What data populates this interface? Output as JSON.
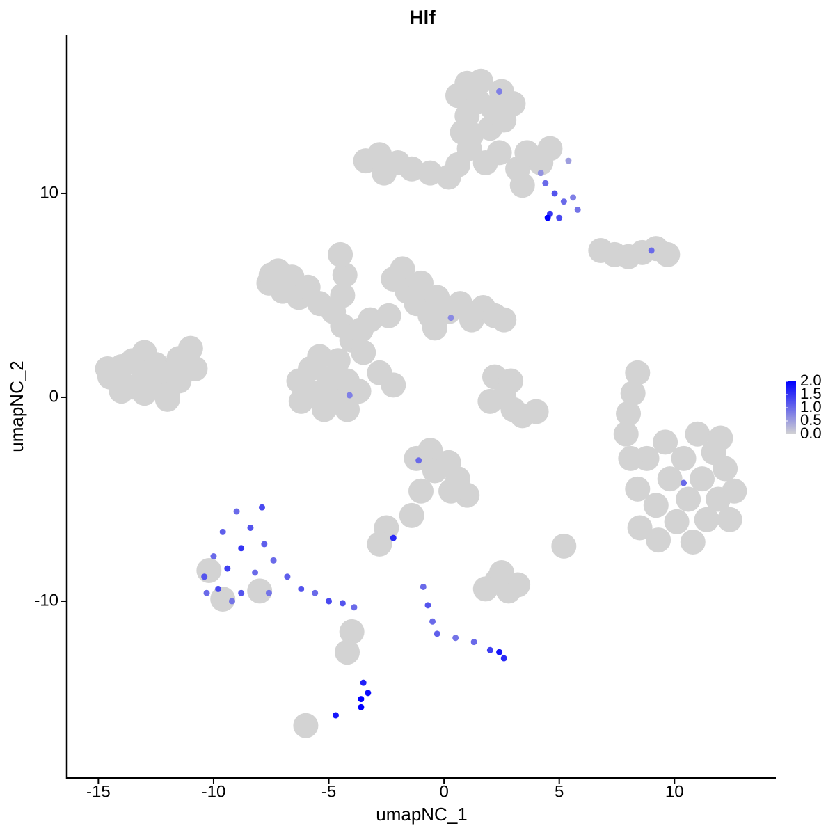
{
  "chart_data": {
    "type": "scatter",
    "title": "Hlf",
    "x_label": "umapNC_1",
    "y_label": "umapNC_2",
    "xlim": [
      -16.37,
      14.4
    ],
    "ylim": [
      -18.67,
      17.78
    ],
    "xticks": [
      -15,
      -10,
      -5,
      0,
      5,
      10
    ],
    "yticks": [
      -10,
      0,
      10
    ],
    "color_scale": {
      "colors": [
        "#d3d3d3",
        "#0000ff"
      ],
      "lim": [
        0,
        2.0
      ],
      "ticks": [
        {
          "value": 0,
          "label": "0.0"
        },
        {
          "value": 0.5,
          "label": "0.5"
        },
        {
          "value": 1.0,
          "label": "1.0"
        },
        {
          "value": 1.5,
          "label": "1.5"
        },
        {
          "value": 2.0,
          "label": "2.0"
        }
      ]
    },
    "series": [
      {
        "name": "Hlf",
        "x": [
          -14.5,
          -14,
          -14,
          -13.5,
          -13.5,
          -13,
          -13,
          -13,
          -12.5,
          -12.5,
          -12,
          -12,
          -11.5,
          -11.5,
          -11,
          -10.8,
          -14.6,
          -12,
          -7.6,
          -7.2,
          -7,
          -6.6,
          -6.3,
          -5.9,
          -5.4,
          -7.5,
          -4.8,
          -4.4,
          -4.0,
          -3.6,
          -3.2,
          -4.3,
          -4.5,
          -4.4,
          -3.5,
          -2.8,
          -2.2,
          -6.3,
          -6.2,
          -5.8,
          -5.6,
          -5.2,
          -5,
          -4.6,
          -4.2,
          -4.2,
          -3.7,
          -5.4,
          -4.6,
          -2.2,
          -1.8,
          -1.6,
          -1.2,
          -1.0,
          -0.6,
          -0.3,
          0.2,
          0.7,
          1.2,
          1.7,
          2.2,
          2.6,
          -2.4,
          -0.4,
          0.6,
          1.0,
          1.0,
          1.5,
          1.6,
          2,
          2.1,
          2.5,
          2.6,
          3.0,
          1.2,
          0.8,
          -3.4,
          -2.8,
          -2.6,
          -2,
          -1.4,
          -0.6,
          0.2,
          0.6,
          1.1,
          1.8,
          2.4,
          3.2,
          3.6,
          4.2,
          3.4,
          4.6,
          6.8,
          7.4,
          8,
          8.6,
          9.2,
          9.7,
          8.4,
          8.5,
          8.8,
          9.2,
          9.3,
          9.6,
          9.8,
          10.1,
          10.4,
          10.6,
          10.8,
          11.0,
          11.2,
          11.4,
          11.7,
          11.9,
          12.2,
          12.4,
          12.6,
          12.0,
          8.4,
          8.2,
          8.0,
          7.9,
          8.1,
          2.2,
          2.6,
          3.0,
          3.4,
          4.0,
          2.0,
          2.9,
          -1.2,
          -0.6,
          -0.4,
          0.2,
          0.6,
          1.0,
          -1.0,
          -1.4,
          -2.5,
          -2.8,
          0.3,
          1.8,
          2.3,
          2.8,
          3.2,
          2.5,
          5.2,
          -10.2,
          -9.6,
          -8.0,
          -6.0,
          -4.0,
          -4.2,
          4.4,
          4.8,
          5.2,
          5.6,
          4.6,
          4.5,
          5.0,
          5.8,
          4.2,
          5.4,
          -10.4,
          -10.0,
          -9.8,
          -9.6,
          -9.4,
          -9.0,
          -8.8,
          -8.8,
          -8.4,
          -8.2,
          -7.9,
          -7.8,
          -7.6,
          -7.4,
          -6.8,
          -6.2,
          -5.6,
          -5.0,
          -4.4,
          -3.9,
          -9.2,
          -10.3,
          -3.6,
          -3.3,
          -3.6,
          -3.5,
          -4.7,
          -0.9,
          -0.7,
          -0.5,
          -0.3,
          0.5,
          1.3,
          2.0,
          2.4,
          2.6,
          -2.2,
          -1.1,
          -4.1,
          0.3,
          10.4,
          9.0,
          2.4
        ],
        "y": [
          1.0,
          0.3,
          1.5,
          0.5,
          1.8,
          0.2,
          1.2,
          2.2,
          0.6,
          1.6,
          0.2,
          1.2,
          0.8,
          1.9,
          2.4,
          1.4,
          1.4,
          -0.1,
          5.6,
          6.2,
          5.2,
          5.9,
          4.9,
          5.4,
          4.6,
          6.0,
          4.2,
          3.5,
          2.8,
          3.3,
          3.8,
          6.0,
          7.0,
          5.0,
          2.2,
          1.2,
          0.6,
          0.8,
          -0.2,
          1.4,
          0.2,
          -0.6,
          0.9,
          0,
          -0.6,
          0.8,
          0.3,
          2.0,
          1.8,
          5.8,
          6.3,
          5.2,
          4.6,
          5.6,
          4.0,
          4.9,
          4.2,
          4.6,
          3.8,
          4.4,
          4.0,
          3.8,
          4.0,
          3.4,
          14.8,
          15.4,
          13.8,
          14.5,
          15.5,
          13.2,
          14.2,
          15.0,
          13.6,
          14.4,
          12.9,
          13.0,
          11.6,
          11.9,
          11.0,
          11.5,
          11.2,
          11.0,
          10.8,
          11.4,
          12.2,
          11.5,
          12.0,
          11.2,
          12.0,
          11.5,
          10.4,
          12.2,
          7.2,
          7.0,
          6.9,
          7.1,
          7.3,
          7.0,
          -4.5,
          -6.4,
          -3.0,
          -5.3,
          -7.0,
          -2.2,
          -4.0,
          -6.1,
          -3.0,
          -5.0,
          -7.1,
          -1.8,
          -4.0,
          -6.0,
          -2.7,
          -5.0,
          -3.5,
          -6.0,
          -4.6,
          -2.0,
          1.2,
          0.2,
          -0.8,
          -1.8,
          -3.0,
          1.0,
          0.0,
          -0.6,
          -0.9,
          -0.7,
          -0.2,
          0.8,
          -3.0,
          -2.6,
          -3.6,
          -3.2,
          -4.0,
          -4.8,
          -4.6,
          -5.8,
          -6.4,
          -7.2,
          -4.6,
          -9.4,
          -9.0,
          -9.5,
          -9.2,
          -8.6,
          -7.3,
          -8.5,
          -9.9,
          -9.5,
          -16.1,
          -11.5,
          -12.5,
          10.5,
          10.0,
          9.6,
          9.8,
          9.0,
          8.8,
          8.8,
          9.2,
          11.0,
          11.6,
          -8.8,
          -7.8,
          -9.4,
          -6.6,
          -8.4,
          -5.6,
          -7.4,
          -9.6,
          -6.4,
          -8.6,
          -5.4,
          -7.2,
          -9.6,
          -8.0,
          -8.8,
          -9.4,
          -9.6,
          -10.0,
          -10.1,
          -10.3,
          -10.0,
          -9.6,
          -14.8,
          -14.5,
          -15.2,
          -14.0,
          -15.6,
          -9.3,
          -10.2,
          -11.0,
          -11.6,
          -11.8,
          -12.0,
          -12.4,
          -12.5,
          -12.8,
          -6.9,
          -3.1,
          0.1,
          3.9,
          -4.2,
          7.2,
          15.0
        ],
        "values": [
          0,
          0,
          0,
          0,
          0,
          0,
          0,
          0,
          0,
          0,
          0,
          0,
          0,
          0,
          0,
          0,
          0,
          0,
          0,
          0,
          0,
          0,
          0,
          0,
          0,
          0,
          0,
          0,
          0,
          0,
          0,
          0,
          0,
          0,
          0,
          0,
          0,
          0,
          0,
          0,
          0,
          0,
          0,
          0,
          0,
          0,
          0,
          0,
          0,
          0,
          0,
          0,
          0,
          0,
          0,
          0,
          0,
          0,
          0,
          0,
          0,
          0,
          0,
          0,
          0,
          0,
          0,
          0,
          0,
          0,
          0,
          0,
          0,
          0,
          0,
          0,
          0,
          0,
          0,
          0,
          0,
          0,
          0,
          0,
          0,
          0,
          0,
          0,
          0,
          0,
          0,
          0,
          0,
          0,
          0,
          0,
          0,
          0,
          0,
          0,
          0,
          0,
          0,
          0,
          0,
          0,
          0,
          0,
          0,
          0,
          0,
          0,
          0,
          0,
          0,
          0,
          0,
          0,
          0,
          0,
          0,
          0,
          0,
          0,
          0,
          0,
          0,
          0,
          0,
          0,
          0,
          0,
          0,
          0,
          0,
          0,
          0,
          0,
          0,
          0,
          0,
          0,
          0,
          0,
          0,
          0,
          0,
          0,
          0,
          0,
          0,
          0,
          0,
          1.0,
          1.2,
          1.0,
          0.8,
          1.5,
          2.0,
          1.3,
          0.9,
          0.6,
          0.5,
          1.2,
          1.0,
          1.3,
          1.1,
          1.4,
          1.0,
          1.5,
          1.2,
          1.2,
          1.0,
          1.3,
          1.1,
          0.9,
          1.0,
          1.1,
          1.2,
          1.0,
          1.3,
          1.2,
          1.0,
          0.9,
          1.0,
          2.0,
          1.9,
          2.0,
          1.7,
          1.8,
          1.0,
          1.2,
          1.0,
          1.1,
          0.9,
          1.0,
          1.4,
          1.8,
          1.6,
          1.6,
          1.0,
          0.8,
          0.7,
          1.0,
          1.0,
          0.8
        ]
      }
    ]
  }
}
